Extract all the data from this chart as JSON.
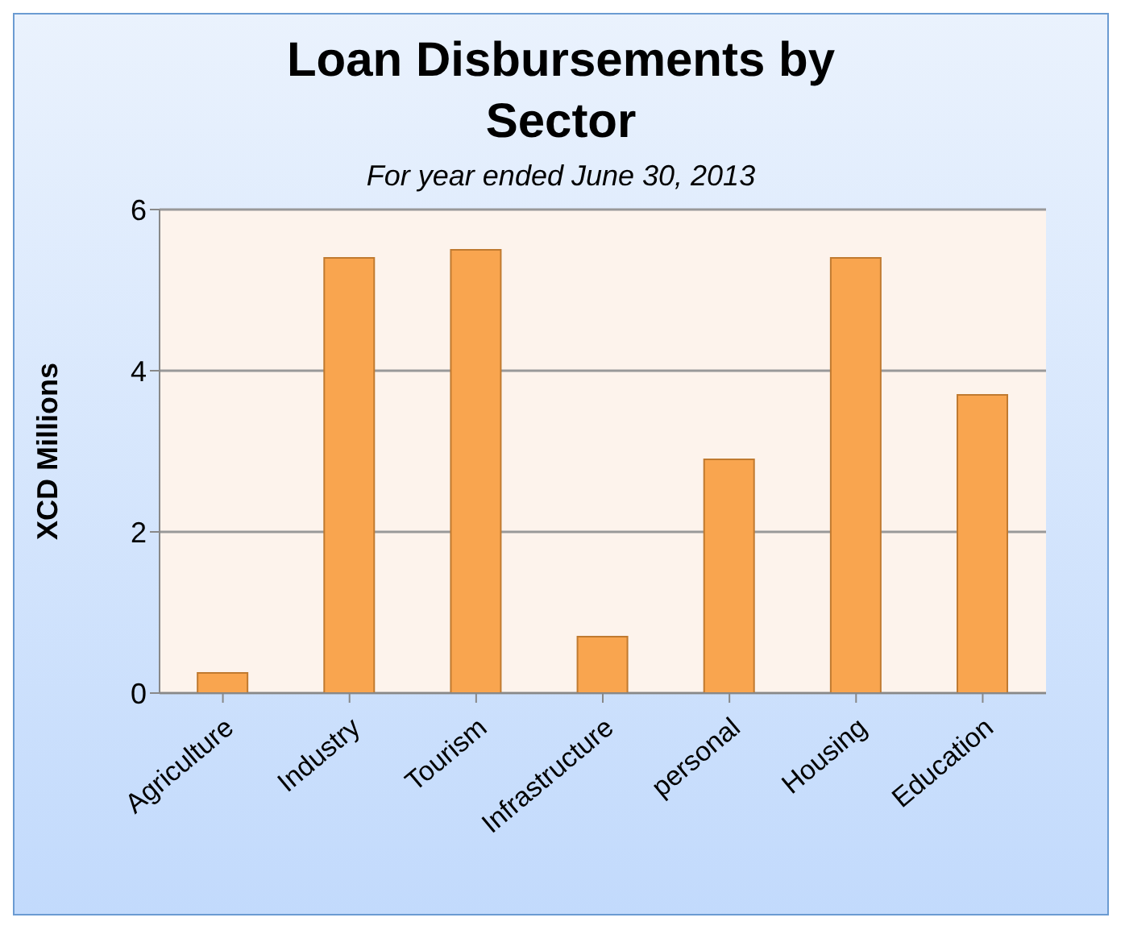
{
  "chart_data": {
    "type": "bar",
    "title": "Loan Disbursements by Sector",
    "subtitle": "For year ended June 30, 2013",
    "ylabel": "XCD Millions",
    "categories": [
      "Agriculture",
      "Industry",
      "Tourism",
      "Infrastructure",
      "personal",
      "Housing",
      "Education"
    ],
    "values": [
      0.25,
      5.4,
      5.5,
      0.7,
      2.9,
      5.4,
      3.7
    ],
    "color": "#f9a54f",
    "ylim": [
      0,
      6
    ],
    "yticks": [
      0,
      2,
      4,
      6
    ],
    "grid": "y"
  }
}
